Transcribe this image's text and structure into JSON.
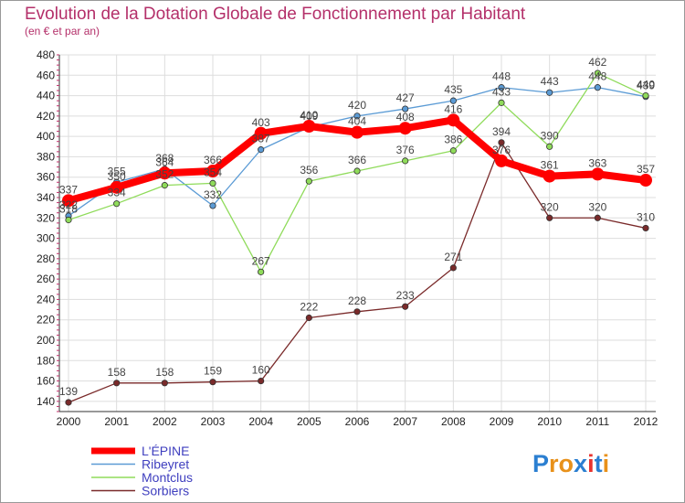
{
  "chart_data": {
    "type": "line",
    "title": "Evolution de la Dotation Globale de Fonctionnement par Habitant",
    "subtitle": "(en € et par an)",
    "x": [
      "2000",
      "2001",
      "2002",
      "2003",
      "2004",
      "2005",
      "2006",
      "2007",
      "2008",
      "2009",
      "2010",
      "2011",
      "2012"
    ],
    "ylim": [
      130,
      480
    ],
    "yticks": [
      140,
      160,
      180,
      200,
      220,
      240,
      260,
      280,
      300,
      320,
      340,
      360,
      380,
      400,
      420,
      440,
      460,
      480
    ],
    "grid": true,
    "legend_position": "bottom-left",
    "series": [
      {
        "name": "L'ÉPINE",
        "color": "#ff0000",
        "emphasis": true,
        "values": [
          337,
          350,
          364,
          366,
          403,
          410,
          404,
          408,
          416,
          376,
          361,
          363,
          357
        ]
      },
      {
        "name": "Ribeyret",
        "color": "#5b9bd5",
        "values": [
          322,
          355,
          368,
          332,
          387,
          409,
          420,
          427,
          435,
          448,
          443,
          448,
          439
        ]
      },
      {
        "name": "Montclus",
        "color": "#8fdb5a",
        "values": [
          318,
          334,
          352,
          354,
          267,
          356,
          366,
          376,
          386,
          433,
          390,
          462,
          440
        ]
      },
      {
        "name": "Sorbiers",
        "color": "#7a2a2a",
        "values": [
          139,
          158,
          158,
          159,
          160,
          222,
          228,
          233,
          271,
          394,
          320,
          320,
          310
        ]
      }
    ]
  },
  "logo": {
    "text": "Proxiti",
    "letters": [
      "P",
      "r",
      "o",
      "x",
      "i",
      "t",
      "i"
    ],
    "colors": [
      "#2b7fd1",
      "#e8911a",
      "#e8911a",
      "#2b7fd1",
      "#e8322e",
      "#2b7fd1",
      "#e8911a"
    ]
  }
}
